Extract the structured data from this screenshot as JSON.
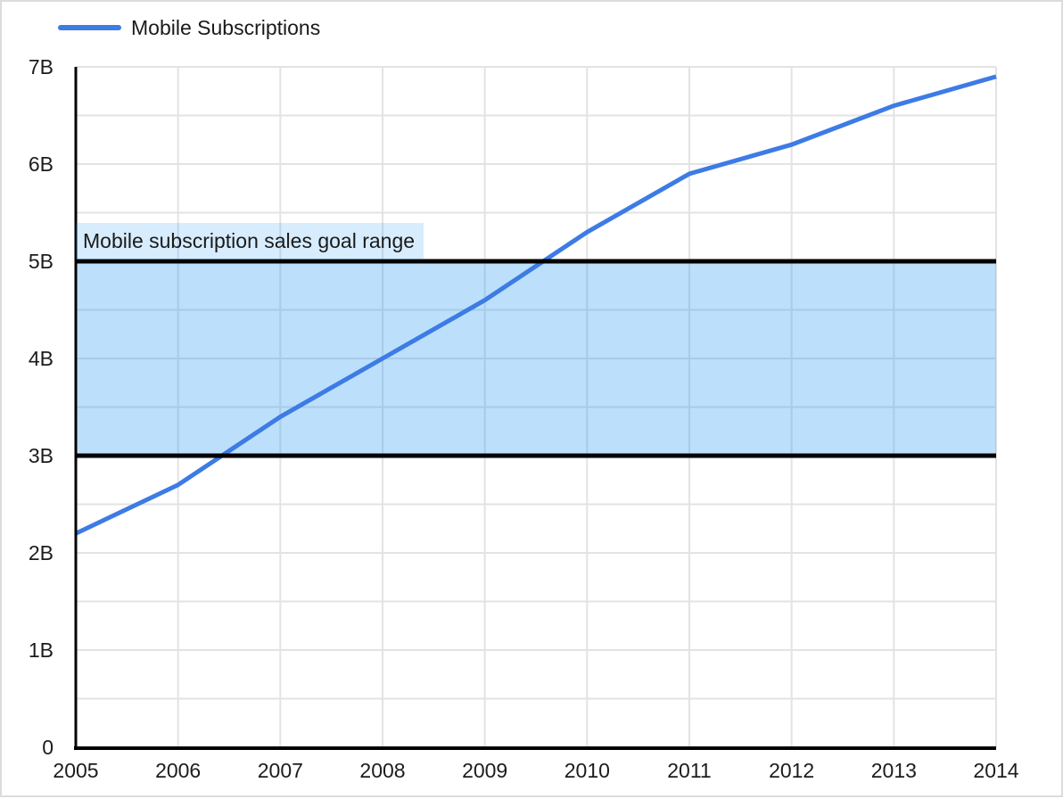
{
  "legend": {
    "label": "Mobile Subscriptions"
  },
  "annotation": {
    "label": "Mobile subscription sales goal range"
  },
  "colors": {
    "series_line": "#3d7be5",
    "gridline": "#e3e3e3",
    "axis": "#000000",
    "band_fill": "rgba(33,150,243,0.30)",
    "band_border": "#000000",
    "annotation_background": "rgba(33,150,243,0.18)",
    "text": "#1c1c1c"
  },
  "chart_data": {
    "type": "line",
    "title": "",
    "xlabel": "",
    "ylabel": "",
    "x": [
      2005,
      2006,
      2007,
      2008,
      2009,
      2010,
      2011,
      2012,
      2013,
      2014
    ],
    "x_tick_labels": [
      "2005",
      "2006",
      "2007",
      "2008",
      "2009",
      "2010",
      "2011",
      "2012",
      "2013",
      "2014"
    ],
    "series": [
      {
        "name": "Mobile Subscriptions",
        "color": "#3d7be5",
        "values": [
          2.2,
          2.7,
          3.4,
          4.0,
          4.6,
          5.3,
          5.9,
          6.2,
          6.6,
          6.9
        ]
      }
    ],
    "xlim": [
      2005,
      2014
    ],
    "ylim": [
      0,
      7
    ],
    "y_tick_values": [
      0,
      1,
      2,
      3,
      4,
      5,
      6,
      7
    ],
    "y_tick_labels": [
      "0",
      "1B",
      "2B",
      "3B",
      "4B",
      "5B",
      "6B",
      "7B"
    ],
    "y_minor_grid_step": 0.5,
    "grid": true,
    "legend_position": "top-left",
    "band": {
      "label": "Mobile subscription sales goal range",
      "from": 3,
      "to": 5,
      "unit": "B"
    }
  }
}
